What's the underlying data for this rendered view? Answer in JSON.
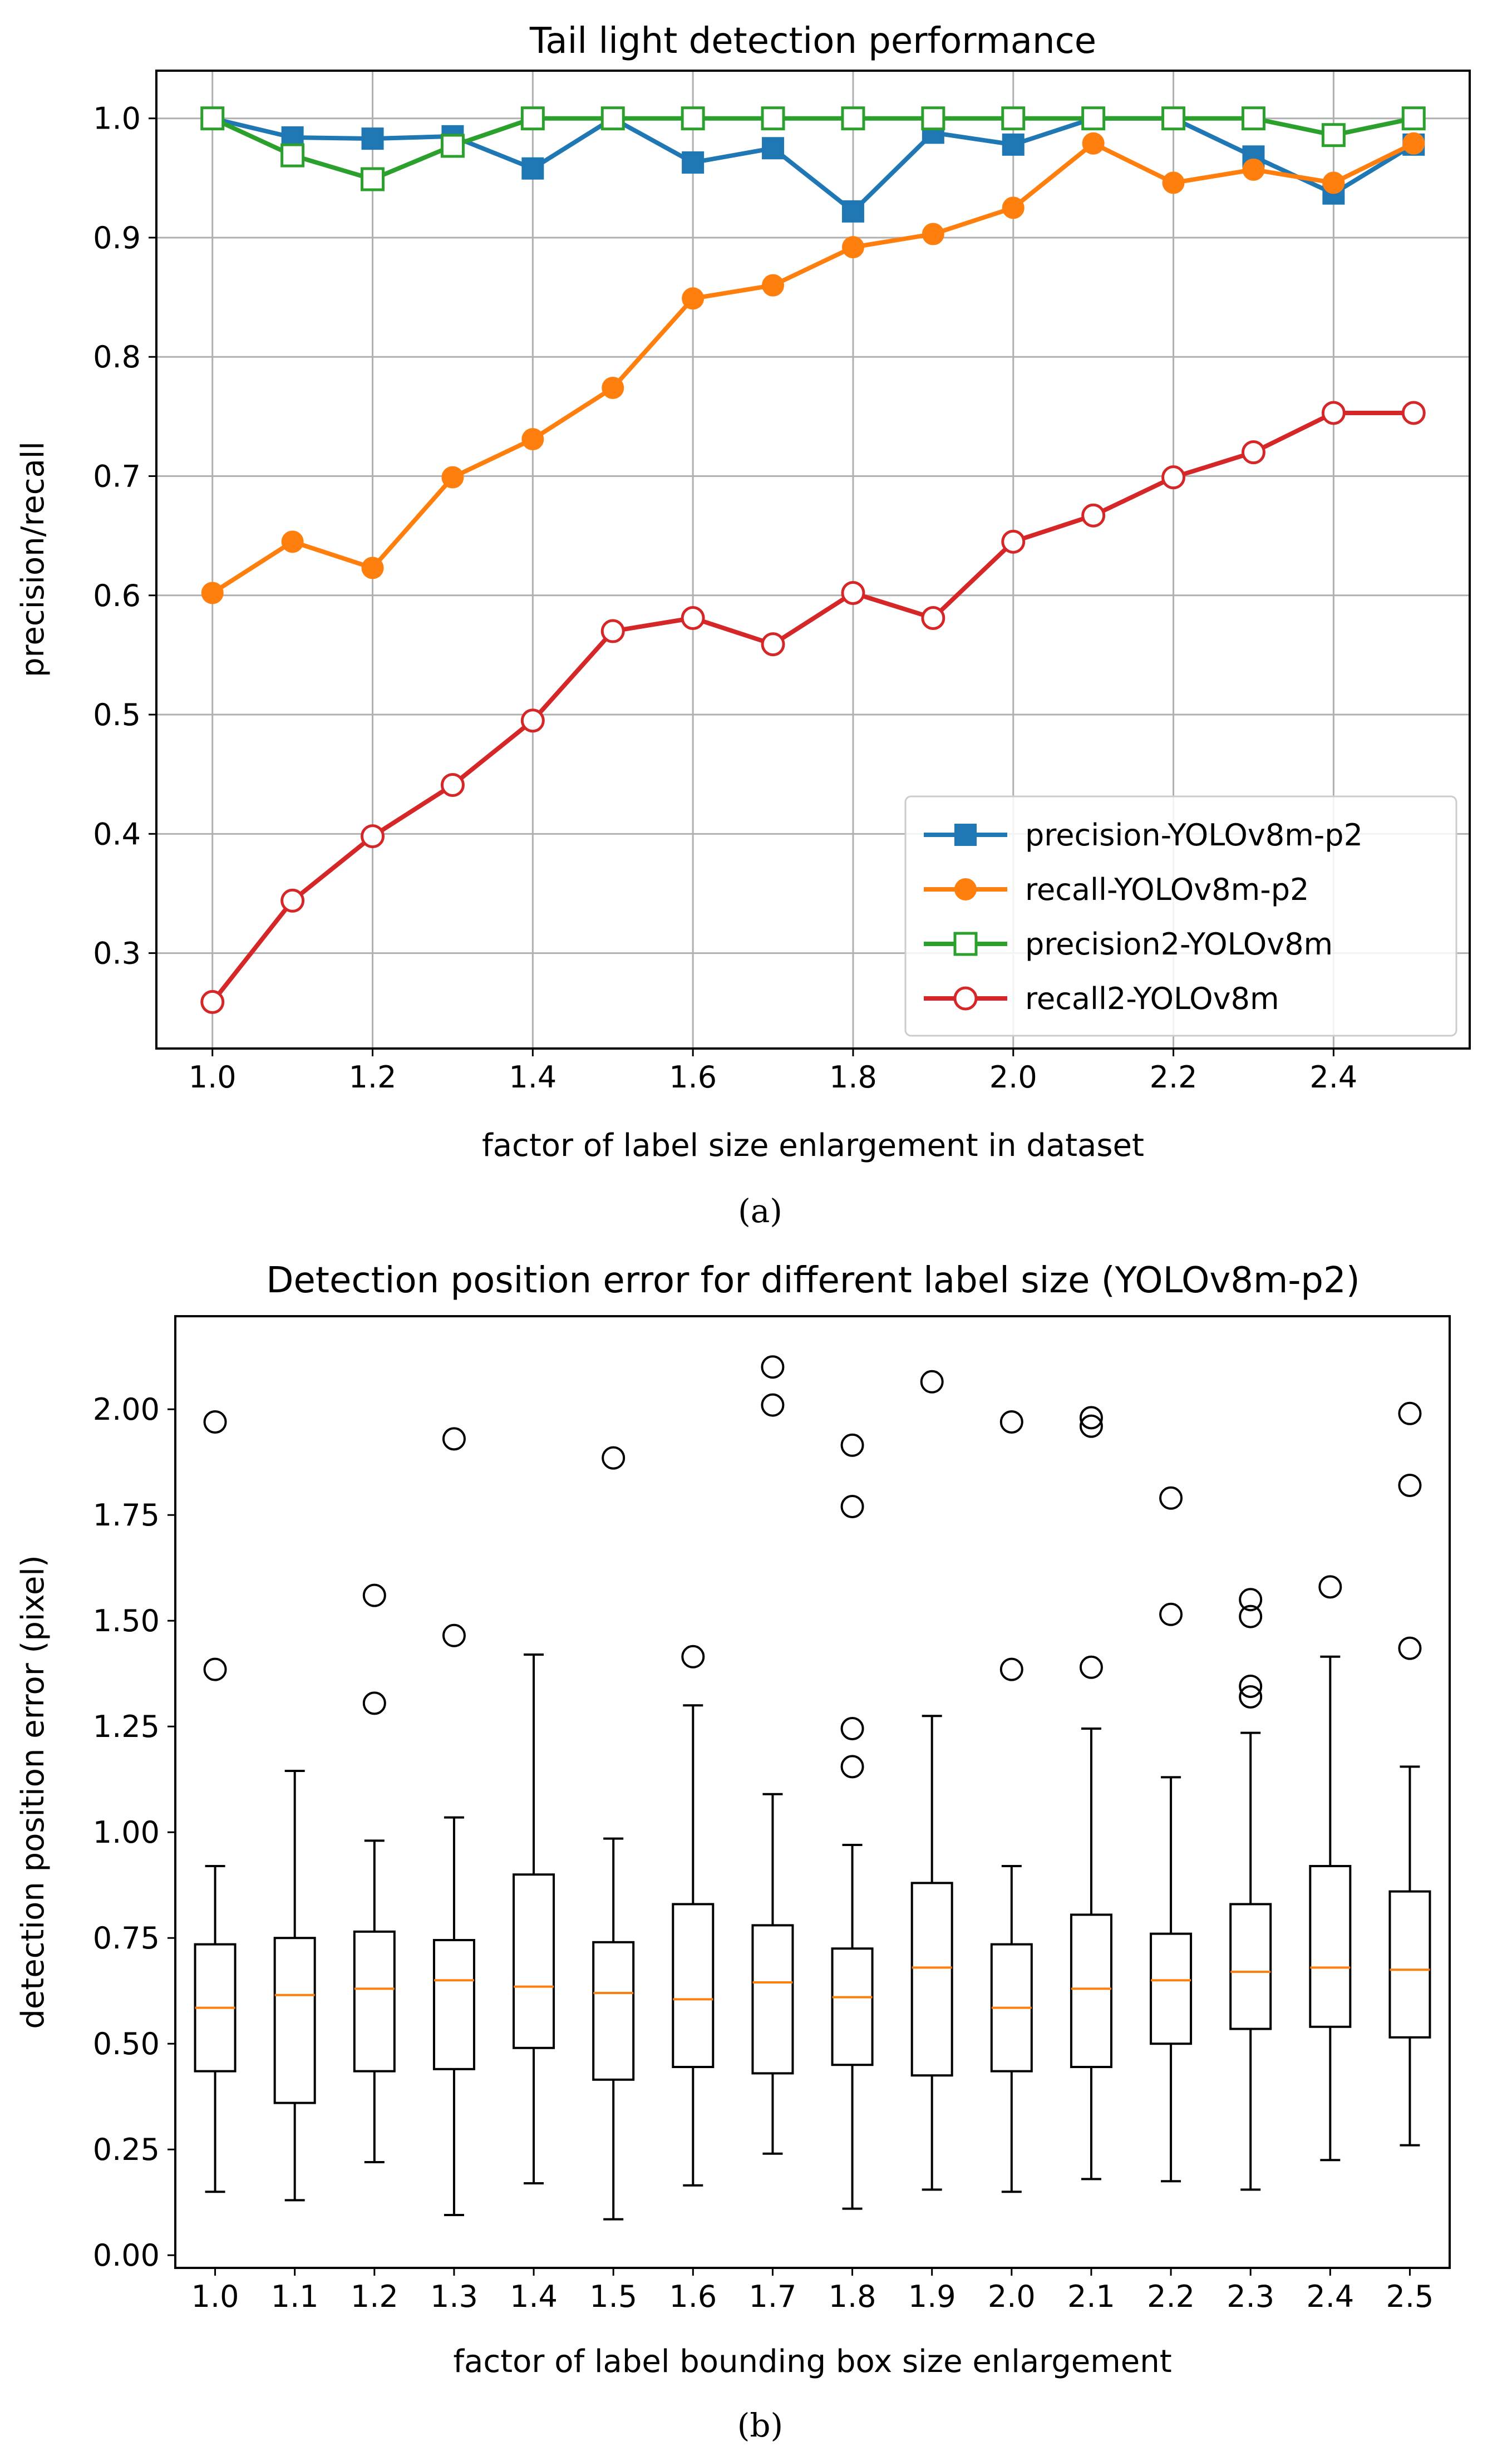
{
  "chart_data": [
    {
      "type": "line",
      "title": "Tail light detection performance",
      "xlabel": "factor of label size enlargement in dataset",
      "ylabel": "precision/recall",
      "xlim": [
        0.93,
        2.57
      ],
      "ylim": [
        0.22,
        1.04
      ],
      "xticks": [
        "1.0",
        "1.2",
        "1.4",
        "1.6",
        "1.8",
        "2.0",
        "2.2",
        "2.4"
      ],
      "yticks": [
        "0.3",
        "0.4",
        "0.5",
        "0.6",
        "0.7",
        "0.8",
        "0.9",
        "1.0"
      ],
      "grid": true,
      "legend_position": "bottom-right",
      "caption": "(a)",
      "x": [
        1.0,
        1.1,
        1.2,
        1.3,
        1.4,
        1.5,
        1.6,
        1.7,
        1.8,
        1.9,
        2.0,
        2.1,
        2.2,
        2.3,
        2.4,
        2.5
      ],
      "series": [
        {
          "name": "precision-YOLOv8m-p2",
          "color": "#1f77b4",
          "marker": "square-filled",
          "values": [
            1.0,
            0.984,
            0.983,
            0.985,
            0.958,
            1.0,
            0.963,
            0.975,
            0.922,
            0.988,
            0.978,
            1.0,
            1.0,
            0.968,
            0.937,
            0.978
          ]
        },
        {
          "name": "recall-YOLOv8m-p2",
          "color": "#ff7f0e",
          "marker": "circle-filled",
          "values": [
            0.602,
            0.645,
            0.623,
            0.699,
            0.731,
            0.774,
            0.849,
            0.86,
            0.892,
            0.903,
            0.925,
            0.979,
            0.946,
            0.957,
            0.946,
            0.979
          ]
        },
        {
          "name": "precision2-YOLOv8m",
          "color": "#2ca02c",
          "marker": "square-open",
          "values": [
            1.0,
            0.969,
            0.949,
            0.977,
            1.0,
            1.0,
            1.0,
            1.0,
            1.0,
            1.0,
            1.0,
            1.0,
            1.0,
            1.0,
            0.986,
            1.0
          ]
        },
        {
          "name": "recall2-YOLOv8m",
          "color": "#d62728",
          "marker": "circle-open",
          "values": [
            0.259,
            0.344,
            0.398,
            0.441,
            0.495,
            0.57,
            0.581,
            0.559,
            0.602,
            0.581,
            0.645,
            0.667,
            0.699,
            0.72,
            0.753,
            0.753
          ]
        }
      ]
    },
    {
      "type": "boxplot",
      "title": "Detection position error for different label size (YOLOv8m-p2)",
      "xlabel": "factor of label bounding box size enlargement",
      "ylabel": "detection position error (pixel)",
      "ylim": [
        -0.03,
        2.22
      ],
      "yticks": [
        "0.00",
        "0.25",
        "0.50",
        "0.75",
        "1.00",
        "1.25",
        "1.50",
        "1.75",
        "2.00"
      ],
      "grid": false,
      "caption": "(b)",
      "median_color": "#ff7f0e",
      "categories": [
        "1.0",
        "1.1",
        "1.2",
        "1.3",
        "1.4",
        "1.5",
        "1.6",
        "1.7",
        "1.8",
        "1.9",
        "2.0",
        "2.1",
        "2.2",
        "2.3",
        "2.4",
        "2.5"
      ],
      "boxes": [
        {
          "whislo": 0.15,
          "q1": 0.435,
          "med": 0.585,
          "q3": 0.735,
          "whishi": 0.92,
          "fliers": [
            1.385,
            1.97
          ]
        },
        {
          "whislo": 0.13,
          "q1": 0.36,
          "med": 0.615,
          "q3": 0.75,
          "whishi": 1.145,
          "fliers": []
        },
        {
          "whislo": 0.22,
          "q1": 0.435,
          "med": 0.63,
          "q3": 0.765,
          "whishi": 0.98,
          "fliers": [
            1.305,
            1.56
          ]
        },
        {
          "whislo": 0.095,
          "q1": 0.44,
          "med": 0.65,
          "q3": 0.745,
          "whishi": 1.035,
          "fliers": [
            1.465,
            1.93
          ]
        },
        {
          "whislo": 0.17,
          "q1": 0.49,
          "med": 0.635,
          "q3": 0.9,
          "whishi": 1.42,
          "fliers": []
        },
        {
          "whislo": 0.085,
          "q1": 0.415,
          "med": 0.62,
          "q3": 0.74,
          "whishi": 0.985,
          "fliers": [
            1.885
          ]
        },
        {
          "whislo": 0.165,
          "q1": 0.445,
          "med": 0.605,
          "q3": 0.83,
          "whishi": 1.3,
          "fliers": [
            1.415
          ]
        },
        {
          "whislo": 0.24,
          "q1": 0.43,
          "med": 0.645,
          "q3": 0.78,
          "whishi": 1.09,
          "fliers": [
            2.01,
            2.1
          ]
        },
        {
          "whislo": 0.11,
          "q1": 0.45,
          "med": 0.61,
          "q3": 0.725,
          "whishi": 0.97,
          "fliers": [
            1.155,
            1.245,
            1.77,
            1.915
          ]
        },
        {
          "whislo": 0.155,
          "q1": 0.425,
          "med": 0.68,
          "q3": 0.88,
          "whishi": 1.275,
          "fliers": [
            2.065
          ]
        },
        {
          "whislo": 0.15,
          "q1": 0.435,
          "med": 0.585,
          "q3": 0.735,
          "whishi": 0.92,
          "fliers": [
            1.385,
            1.97
          ]
        },
        {
          "whislo": 0.18,
          "q1": 0.445,
          "med": 0.63,
          "q3": 0.805,
          "whishi": 1.245,
          "fliers": [
            1.39,
            1.96,
            1.98
          ]
        },
        {
          "whislo": 0.175,
          "q1": 0.5,
          "med": 0.65,
          "q3": 0.76,
          "whishi": 1.13,
          "fliers": [
            1.515,
            1.79
          ]
        },
        {
          "whislo": 0.155,
          "q1": 0.535,
          "med": 0.67,
          "q3": 0.83,
          "whishi": 1.235,
          "fliers": [
            1.32,
            1.345,
            1.51,
            1.55
          ]
        },
        {
          "whislo": 0.225,
          "q1": 0.54,
          "med": 0.68,
          "q3": 0.92,
          "whishi": 1.415,
          "fliers": [
            1.58
          ]
        },
        {
          "whislo": 0.26,
          "q1": 0.515,
          "med": 0.675,
          "q3": 0.86,
          "whishi": 1.155,
          "fliers": [
            1.435,
            1.82,
            1.99
          ]
        }
      ]
    }
  ]
}
